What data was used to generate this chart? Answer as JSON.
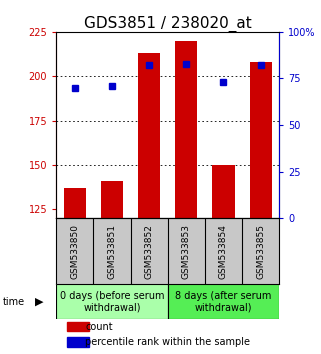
{
  "title": "GDS3851 / 238020_at",
  "samples": [
    "GSM533850",
    "GSM533851",
    "GSM533852",
    "GSM533853",
    "GSM533854",
    "GSM533855"
  ],
  "counts": [
    137,
    141,
    213,
    220,
    150,
    208
  ],
  "percentiles": [
    70,
    71,
    82,
    83,
    73,
    82
  ],
  "ylim_left": [
    120,
    225
  ],
  "ylim_right": [
    0,
    100
  ],
  "yticks_left": [
    125,
    150,
    175,
    200,
    225
  ],
  "yticks_right": [
    0,
    25,
    50,
    75,
    100
  ],
  "bar_color": "#cc0000",
  "dot_color": "#0000cc",
  "bg_color": "#ffffff",
  "label_bg_color": "#c8c8c8",
  "group1_color": "#aaffaa",
  "group2_color": "#55ee55",
  "group1_label": "0 days (before serum\nwithdrawal)",
  "group2_label": "8 days (after serum\nwithdrawal)",
  "group1_samples": [
    0,
    1,
    2
  ],
  "group2_samples": [
    3,
    4,
    5
  ],
  "legend_count_label": "count",
  "legend_pct_label": "percentile rank within the sample",
  "time_label": "time",
  "title_fontsize": 11,
  "tick_fontsize": 7,
  "sample_fontsize": 6.5,
  "group_fontsize": 7,
  "legend_fontsize": 7
}
